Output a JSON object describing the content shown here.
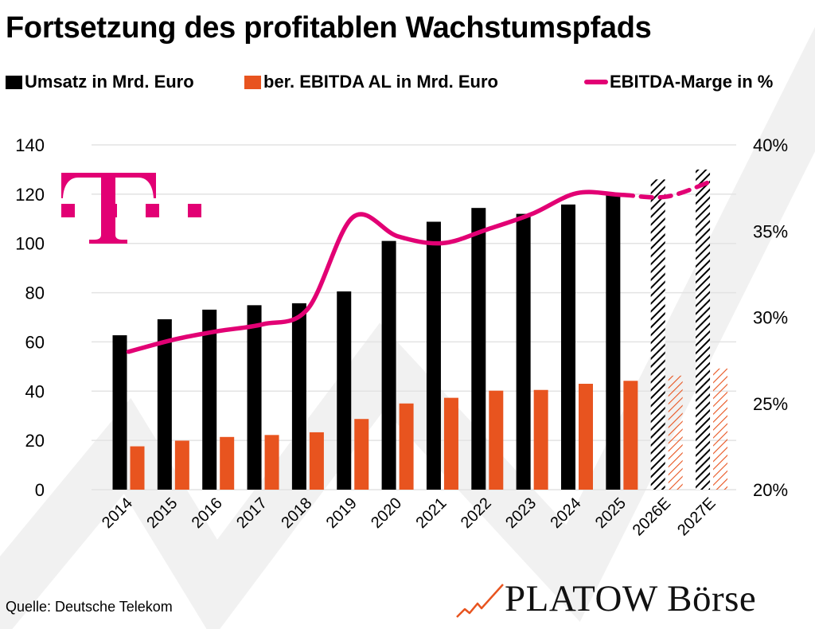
{
  "title": "Fortsetzung des profitablen Wachstumspfads",
  "legend": [
    {
      "label": "Umsatz in Mrd. Euro",
      "kind": "square",
      "color": "#000000"
    },
    {
      "label": "ber. EBITDA AL in Mrd. Euro",
      "kind": "square",
      "color": "#E8541F"
    },
    {
      "label": "EBITDA-Marge in %",
      "kind": "line",
      "color": "#E20074"
    }
  ],
  "source": "Quelle: Deutsche Telekom",
  "brand": {
    "name": "PLATOW Börse",
    "icon": "rising-chart-arrow-icon",
    "accent": "#E8541F"
  },
  "logo": {
    "name": "telekom-t-logo",
    "color": "#E20074"
  },
  "colors": {
    "revenue": "#000000",
    "ebitda": "#E8541F",
    "margin": "#E20074",
    "grid": "#E3E3E3",
    "watermark": "#F1F1F1"
  },
  "chart_data": {
    "type": "bar",
    "title": "Fortsetzung des profitablen Wachstumspfads",
    "xlabel": "",
    "ylabel": "",
    "categories": [
      "2014",
      "2015",
      "2016",
      "2017",
      "2018",
      "2019",
      "2020",
      "2021",
      "2022",
      "2023",
      "2024",
      "2025",
      "2026E",
      "2027E"
    ],
    "forecast_categories": [
      "2026E",
      "2027E"
    ],
    "series": [
      {
        "name": "Umsatz in Mrd. Euro",
        "type": "bar",
        "axis": "left",
        "values": [
          62.7,
          69.2,
          73.1,
          74.9,
          75.7,
          80.5,
          101.0,
          108.8,
          114.4,
          112.0,
          115.8,
          119.5,
          126.0,
          130.0
        ]
      },
      {
        "name": "ber. EBITDA AL in Mrd. Euro",
        "type": "bar",
        "axis": "left",
        "values": [
          17.6,
          19.9,
          21.4,
          22.2,
          23.3,
          28.7,
          35.0,
          37.3,
          40.2,
          40.5,
          43.0,
          44.2,
          46.3,
          49.2
        ]
      },
      {
        "name": "EBITDA-Marge in %",
        "type": "line",
        "axis": "right",
        "values": [
          28.0,
          28.7,
          29.2,
          29.6,
          30.5,
          35.8,
          34.7,
          34.3,
          35.1,
          36.0,
          37.2,
          37.1,
          37.0,
          37.9
        ]
      }
    ],
    "y_left": {
      "min": 0,
      "max": 140,
      "ticks": [
        0,
        20,
        40,
        60,
        80,
        100,
        120,
        140
      ]
    },
    "y_right": {
      "min": 20,
      "max": 40,
      "ticks": [
        "20%",
        "25%",
        "30%",
        "35%",
        "40%"
      ],
      "tick_values": [
        20,
        25,
        30,
        35,
        40
      ]
    },
    "grid": true,
    "legend_position": "top"
  }
}
